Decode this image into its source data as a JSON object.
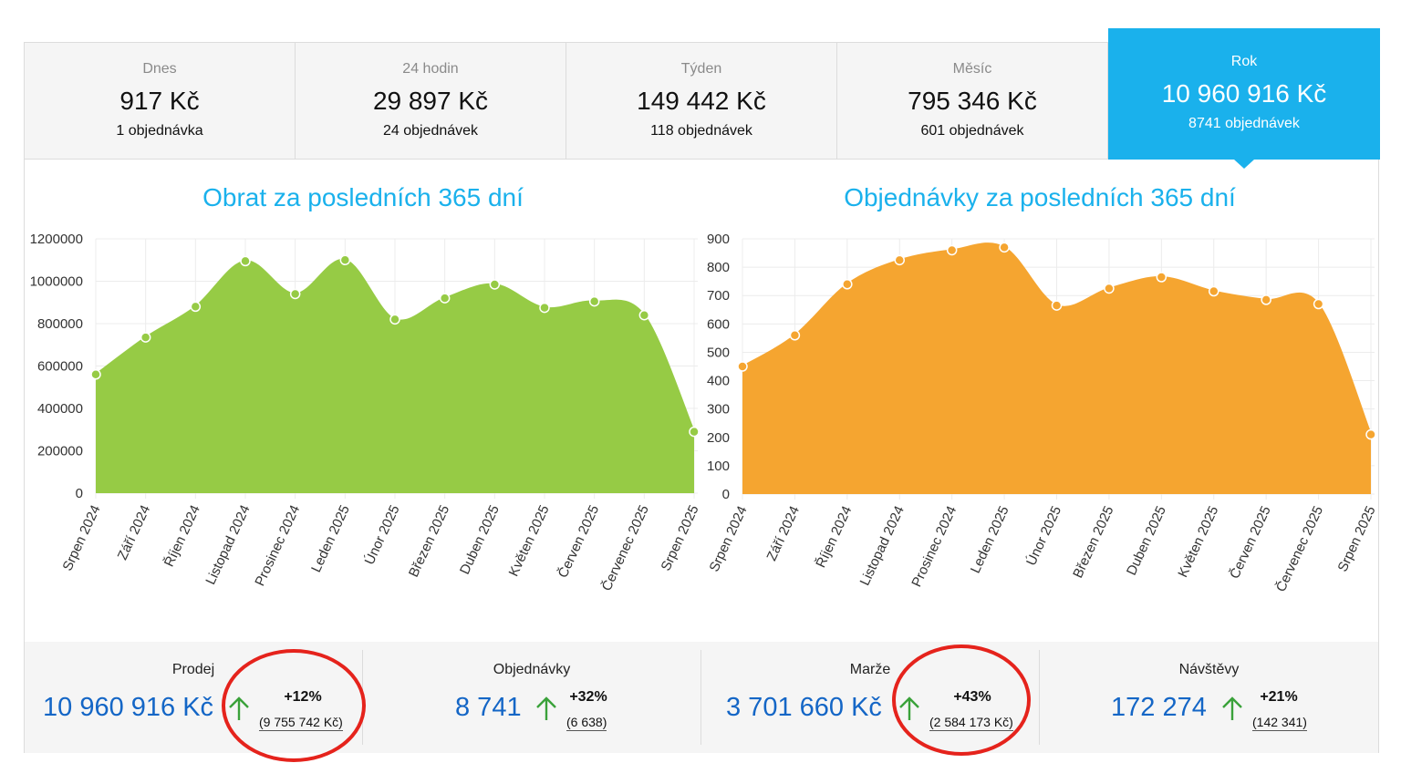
{
  "tabs": [
    {
      "title": "Dnes",
      "amount": "917 Kč",
      "orders": "1 objednávka"
    },
    {
      "title": "24 hodin",
      "amount": "29 897 Kč",
      "orders": "24 objednávek"
    },
    {
      "title": "Týden",
      "amount": "149 442 Kč",
      "orders": "118 objednávek"
    },
    {
      "title": "Měsíc",
      "amount": "795 346 Kč",
      "orders": "601 objednávek"
    },
    {
      "title": "Rok",
      "amount": "10 960 916 Kč",
      "orders": "8741 objednávek"
    }
  ],
  "active_tab": "Rok",
  "colors": {
    "accent": "#1ab1ec",
    "revenue_fill": "#96cb45",
    "orders_fill": "#f5a530",
    "value_blue": "#1466c6",
    "up_arrow": "#3aa23a",
    "annotation_red": "#e5231c"
  },
  "chart_data": [
    {
      "type": "area",
      "title": "Obrat za posledních 365 dní",
      "categories": [
        "Srpen 2024",
        "Září 2024",
        "Říjen 2024",
        "Listopad 2024",
        "Prosinec 2024",
        "Leden 2025",
        "Únor 2025",
        "Březen 2025",
        "Duben 2025",
        "Květen 2025",
        "Červen 2025",
        "Červenec 2025",
        "Srpen 2025"
      ],
      "values": [
        560000,
        735000,
        880000,
        1095000,
        940000,
        1100000,
        820000,
        920000,
        985000,
        875000,
        905000,
        840000,
        290000
      ],
      "ylim": [
        0,
        1200000
      ],
      "yticks": [
        "0",
        "200000",
        "400000",
        "600000",
        "800000",
        "1000000",
        "1200000"
      ],
      "grid": true,
      "color": "#96cb45"
    },
    {
      "type": "area",
      "title": "Objednávky za posledních 365 dní",
      "categories": [
        "Srpen 2024",
        "Září 2024",
        "Říjen 2024",
        "Listopad 2024",
        "Prosinec 2024",
        "Leden 2025",
        "Únor 2025",
        "Březen 2025",
        "Duben 2025",
        "Květen 2025",
        "Červen 2025",
        "Červenec 2025",
        "Srpen 2025"
      ],
      "values": [
        450,
        560,
        740,
        825,
        860,
        870,
        665,
        725,
        765,
        715,
        685,
        670,
        210
      ],
      "ylim": [
        0,
        900
      ],
      "yticks": [
        "0",
        "100",
        "200",
        "300",
        "400",
        "500",
        "600",
        "700",
        "800",
        "900"
      ],
      "grid": true,
      "color": "#f5a530"
    }
  ],
  "stats": [
    {
      "label": "Prodej",
      "value": "10 960 916 Kč",
      "pct": "+12%",
      "prev": "(9 755 742 Kč)"
    },
    {
      "label": "Objednávky",
      "value": "8 741",
      "pct": "+32%",
      "prev": "(6 638)"
    },
    {
      "label": "Marže",
      "value": "3 701 660 Kč",
      "pct": "+43%",
      "prev": "(2 584 173 Kč)"
    },
    {
      "label": "Návštěvy",
      "value": "172 274",
      "pct": "+21%",
      "prev": "(142 341)"
    }
  ]
}
